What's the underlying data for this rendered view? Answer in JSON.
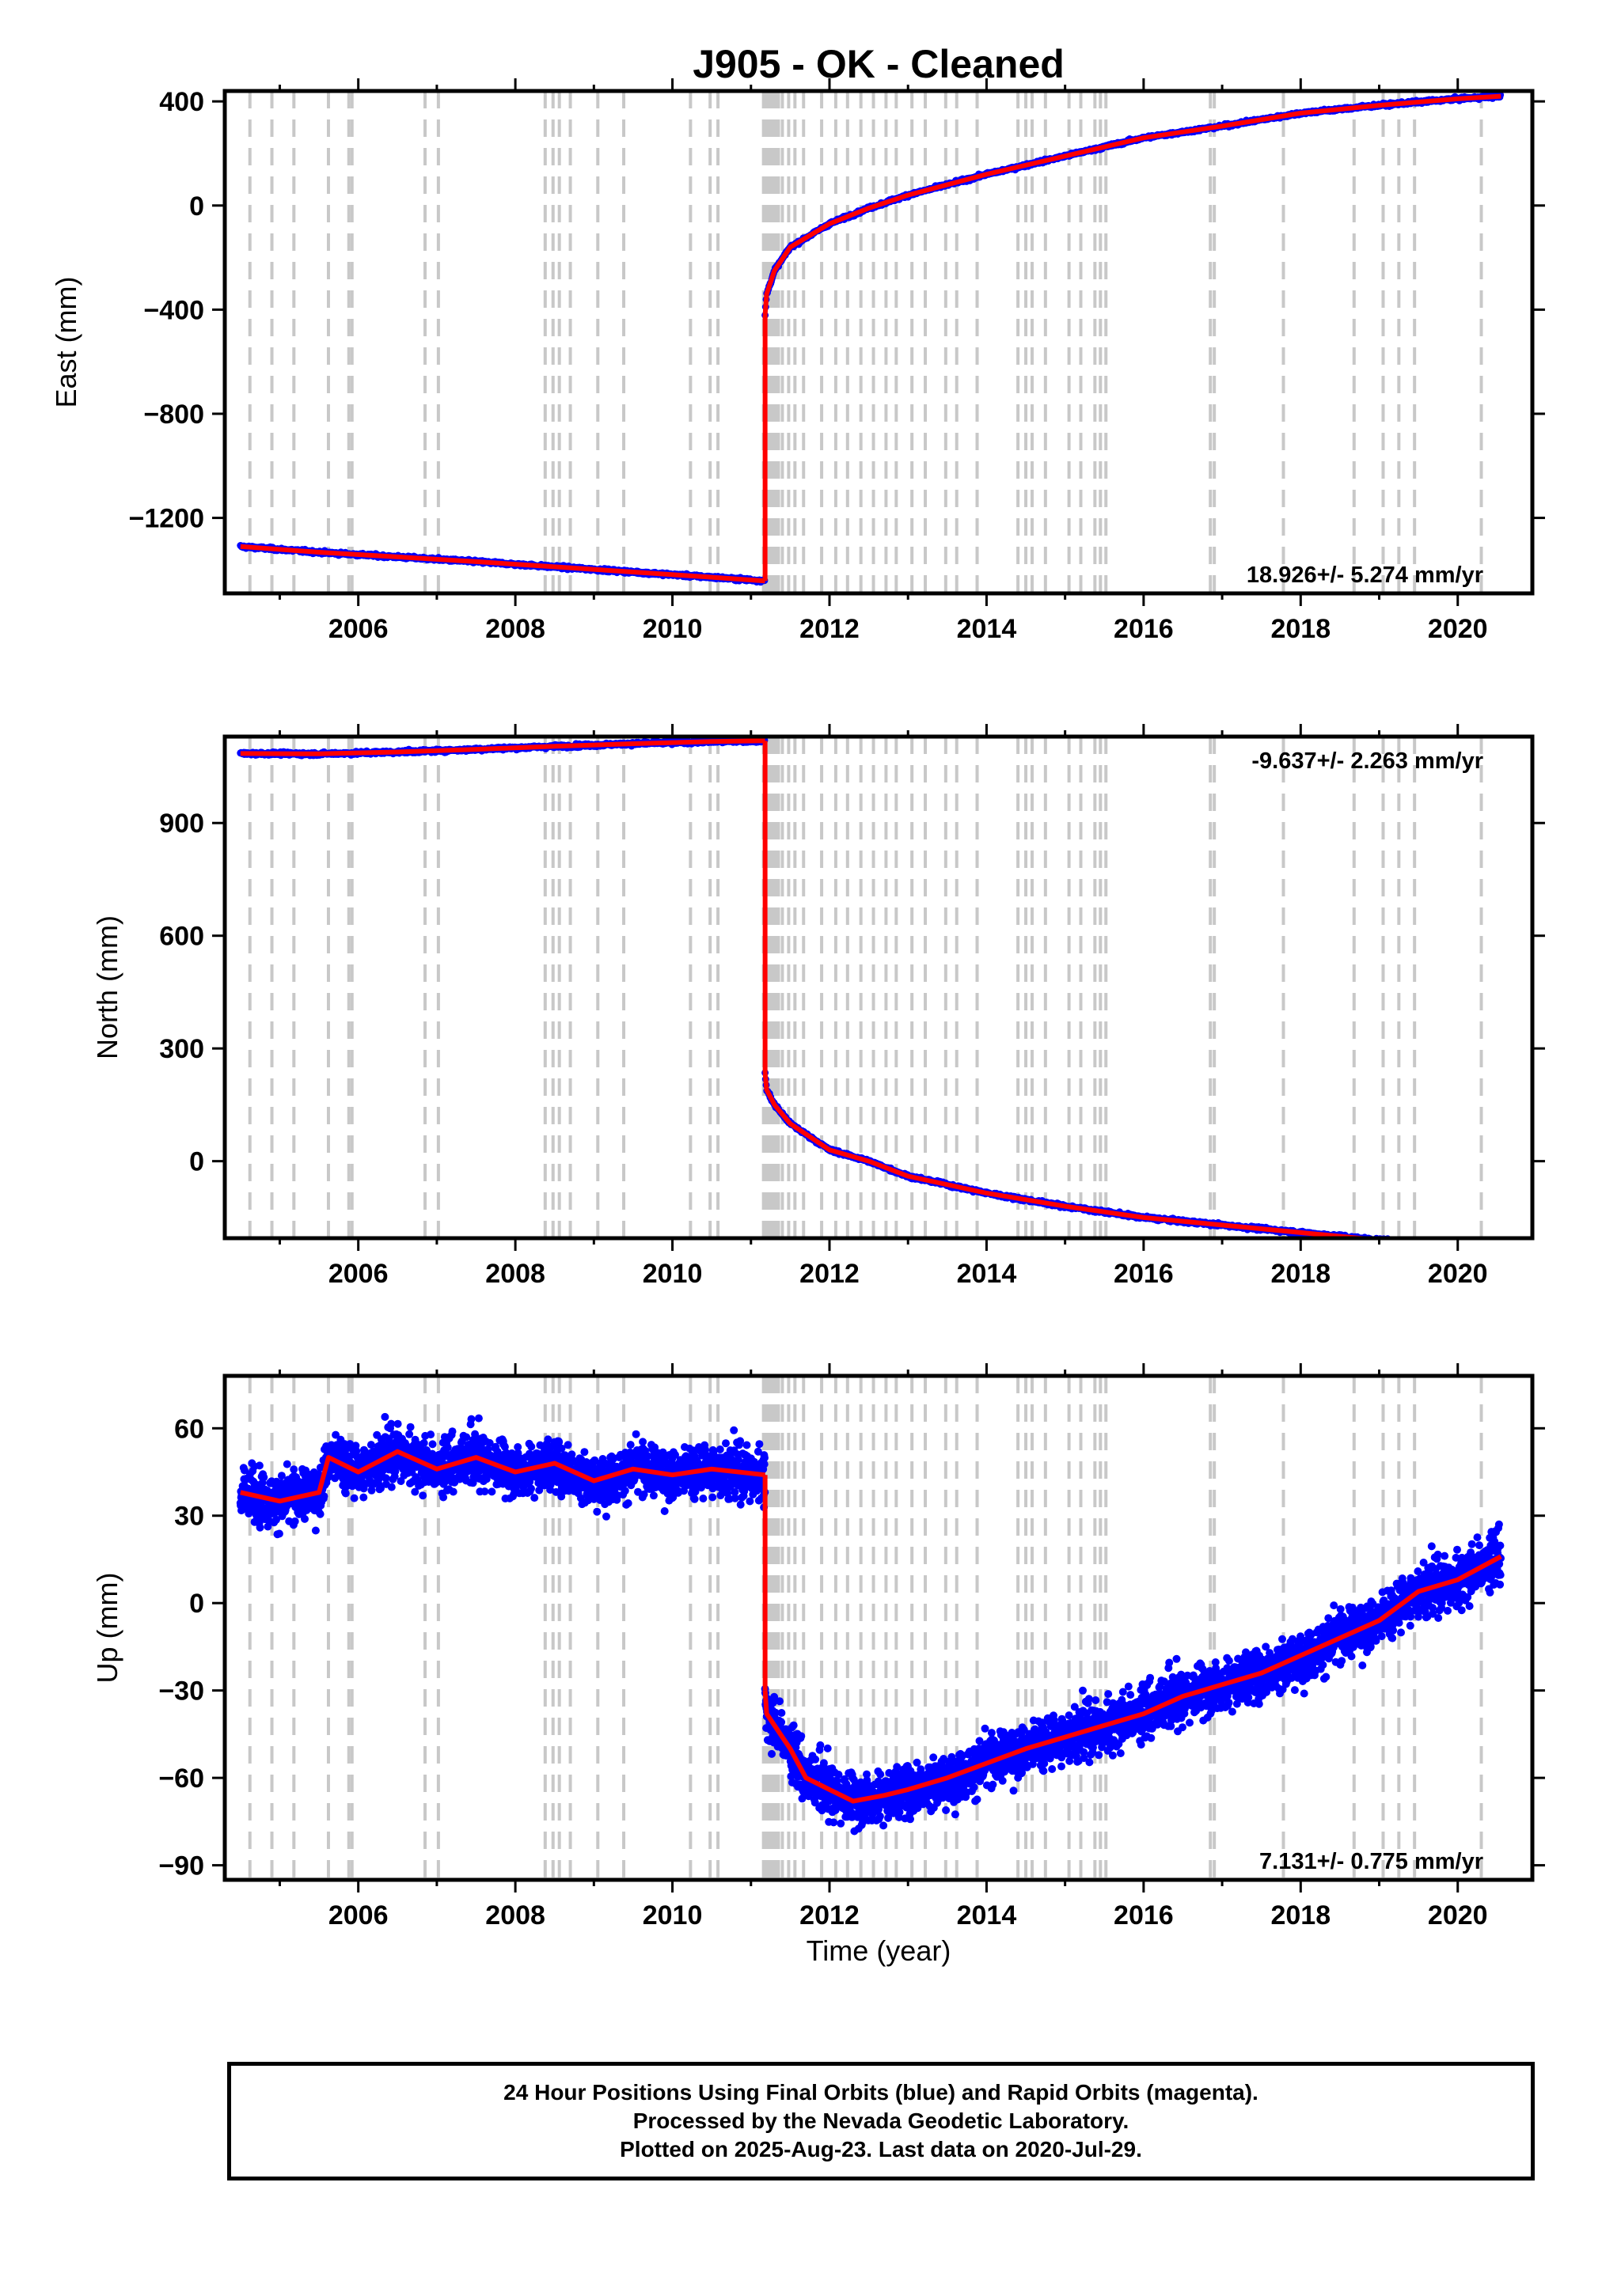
{
  "chart_data": {
    "type": "scatter",
    "title": "J905  - OK - Cleaned",
    "xlabel": "Time (year)",
    "xlim": [
      2004.3,
      2020.95
    ],
    "xticks": [
      2006,
      2008,
      2010,
      2012,
      2014,
      2016,
      2018,
      2020
    ],
    "event_lines": [
      2004.62,
      2004.9,
      2005.18,
      2005.62,
      2005.88,
      2005.92,
      2006.85,
      2007.02,
      2008.38,
      2008.48,
      2008.56,
      2008.7,
      2009.05,
      2009.38,
      2010.23,
      2010.48,
      2010.58,
      2011.16,
      2011.19,
      2011.22,
      2011.25,
      2011.28,
      2011.31,
      2011.35,
      2011.4,
      2011.48,
      2011.56,
      2011.67,
      2011.9,
      2012.08,
      2012.23,
      2012.4,
      2012.56,
      2012.72,
      2012.85,
      2013.05,
      2013.22,
      2013.48,
      2013.62,
      2013.88,
      2014.4,
      2014.5,
      2014.58,
      2014.75,
      2015.05,
      2015.2,
      2015.38,
      2015.45,
      2015.52,
      2016.85,
      2016.9,
      2017.78,
      2018.68,
      2019.05,
      2019.25,
      2019.45,
      2020.3
    ],
    "panels": [
      {
        "ylabel": "East (mm)",
        "ylim": [
          -1490,
          440
        ],
        "yticks": [
          400,
          0,
          -400,
          -800,
          -1200
        ],
        "rate_text": "18.926+/- 5.274 mm/yr",
        "rate_pos": "bottom-right",
        "series": [
          {
            "x": [
              2004.5,
              2005.5,
              2006.5,
              2007.5,
              2008.5,
              2009.5,
              2010.5,
              2011.18
            ],
            "y": [
              -1310,
              -1332,
              -1350,
              -1368,
              -1388,
              -1408,
              -1428,
              -1442
            ]
          },
          {
            "x": [
              2011.18,
              2011.2,
              2011.3,
              2011.5,
              2012.0,
              2012.5,
              2013.0,
              2014.0,
              2015.0,
              2016.0,
              2017.0,
              2018.0,
              2019.0,
              2020.0,
              2020.55
            ],
            "y": [
              -420,
              -340,
              -250,
              -160,
              -70,
              -10,
              40,
              120,
              190,
              260,
              305,
              355,
              385,
              410,
              420
            ]
          }
        ]
      },
      {
        "ylabel": "North (mm)",
        "ylim": [
          -205,
          1130
        ],
        "yticks": [
          900,
          600,
          300,
          0
        ],
        "rate_text": "-9.637+/- 2.263 mm/yr",
        "rate_pos": "top-right",
        "series": [
          {
            "x": [
              2004.5,
              2005.5,
              2006.5,
              2007.5,
              2008.5,
              2009.5,
              2010.5,
              2011.18
            ],
            "y": [
              1085,
              1084,
              1089,
              1096,
              1104,
              1111,
              1117,
              1119
            ]
          },
          {
            "x": [
              2011.18,
              2011.2,
              2011.3,
              2011.5,
              2012.0,
              2012.5,
              2013.0,
              2014.0,
              2015.0,
              2016.0,
              2017.0,
              2018.0,
              2019.0,
              2020.0,
              2020.55
            ],
            "y": [
              235,
              190,
              150,
              100,
              30,
              0,
              -40,
              -85,
              -120,
              -150,
              -170,
              -190,
              -210,
              -220,
              -222
            ]
          }
        ]
      },
      {
        "ylabel": "Up (mm)",
        "ylim": [
          -95,
          78
        ],
        "yticks": [
          60,
          30,
          0,
          -30,
          -60,
          -90
        ],
        "rate_text": "7.131+/- 0.775 mm/yr",
        "rate_pos": "bottom-right",
        "series": [
          {
            "x": [
              2004.5,
              2005.0,
              2005.5,
              2005.62,
              2006.0,
              2006.5,
              2007.0,
              2007.5,
              2008.0,
              2008.5,
              2009.0,
              2009.5,
              2010.0,
              2010.5,
              2011.18
            ],
            "y": [
              38,
              35,
              38,
              50,
              45,
              52,
              46,
              50,
              45,
              48,
              42,
              46,
              44,
              46,
              44
            ]
          },
          {
            "x": [
              2011.18,
              2011.2,
              2011.3,
              2011.5,
              2011.7,
              2012.0,
              2012.3,
              2012.7,
              2013.0,
              2013.5,
              2014.0,
              2014.5,
              2015.0,
              2015.5,
              2016.0,
              2016.5,
              2017.0,
              2017.5,
              2018.0,
              2018.5,
              2019.0,
              2019.5,
              2020.0,
              2020.55
            ],
            "y": [
              -30,
              -38,
              -42,
              -50,
              -60,
              -64,
              -68,
              -66,
              -64,
              -60,
              -55,
              -50,
              -46,
              -42,
              -38,
              -32,
              -28,
              -24,
              -18,
              -12,
              -6,
              4,
              8,
              16
            ]
          }
        ]
      }
    ],
    "colors": {
      "data_points": "#0000ff",
      "model_line": "#ff0000",
      "event_lines": "#c8c8c8"
    }
  },
  "footer": {
    "line1": "24 Hour Positions Using Final Orbits (blue) and Rapid Orbits (magenta).",
    "line2": "Processed by the Nevada Geodetic Laboratory.",
    "line3": "Plotted on 2025-Aug-23. Last data on 2020-Jul-29."
  }
}
